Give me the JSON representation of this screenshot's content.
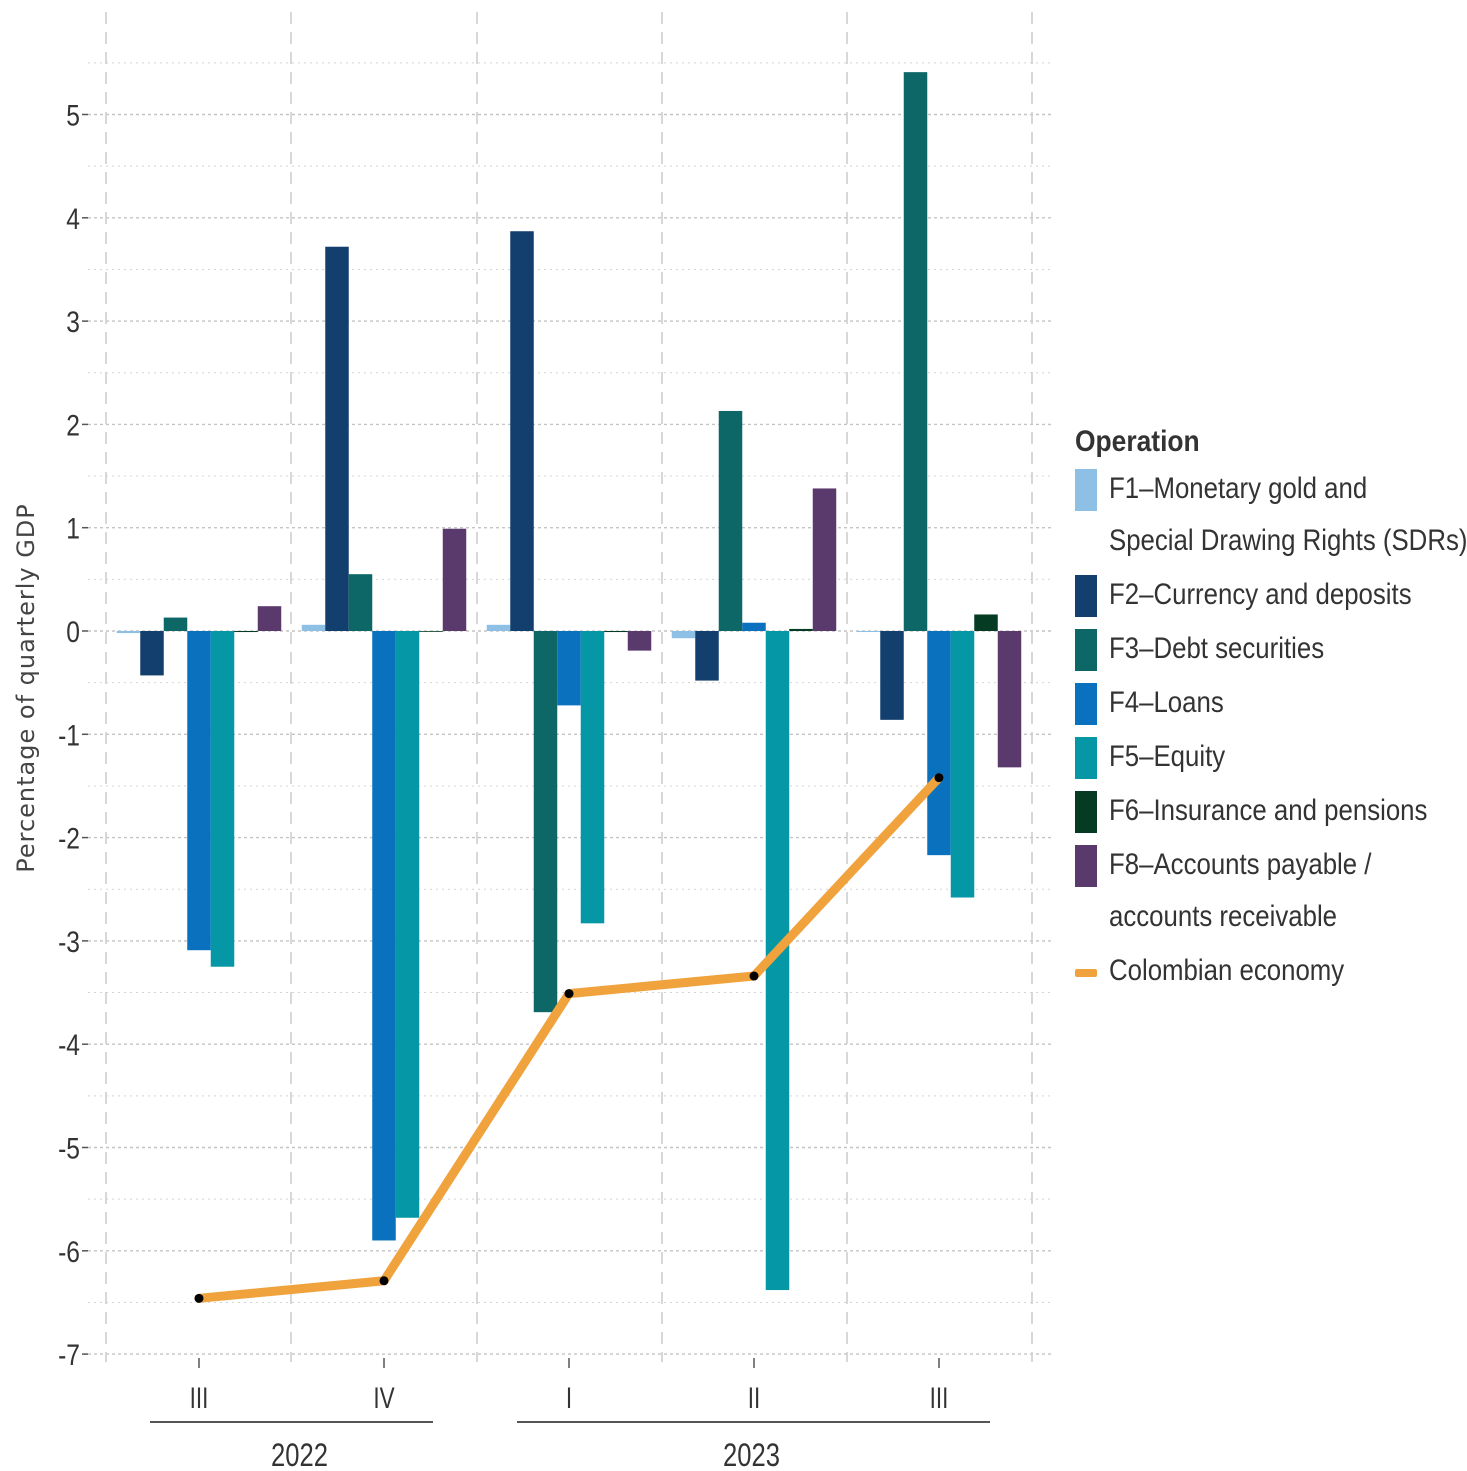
{
  "chart_data": {
    "type": "bar",
    "ylabel": "Percentage of quarterly GDP",
    "ylim": [
      -7,
      5.5
    ],
    "yticks": [
      -7,
      -6,
      -5,
      -4,
      -3,
      -2,
      -1,
      0,
      1,
      2,
      3,
      4,
      5
    ],
    "ytick_labels": [
      "-7",
      "-6",
      "-5",
      "-4",
      "-3",
      "-2",
      "-1",
      "0",
      "1",
      "2",
      "3",
      "4",
      "5"
    ],
    "categories": [
      "III",
      "IV",
      "I",
      "II",
      "III"
    ],
    "groups": [
      {
        "label": "2022",
        "categories": [
          0,
          1
        ]
      },
      {
        "label": "2023",
        "categories": [
          2,
          3,
          4
        ]
      }
    ],
    "grid": true,
    "legend_title": "Operation",
    "legend_position": "right",
    "series": [
      {
        "name": "F1–Monetary gold and Special Drawing Rights (SDRs)",
        "color": "#8ec0e6",
        "values": [
          -0.02,
          0.06,
          0.06,
          -0.07,
          -0.01
        ]
      },
      {
        "name": "F2–Currency and deposits",
        "color": "#123f6e",
        "values": [
          -0.43,
          3.72,
          3.87,
          -0.48,
          -0.86
        ]
      },
      {
        "name": "F3–Debt securities",
        "color": "#0d6766",
        "values": [
          0.13,
          0.55,
          -3.69,
          2.13,
          5.41
        ]
      },
      {
        "name": "F4–Loans",
        "color": "#0971bd",
        "values": [
          -3.09,
          -5.9,
          -0.72,
          0.08,
          -2.17
        ]
      },
      {
        "name": "F5–Equity",
        "color": "#0597a6",
        "values": [
          -3.25,
          -5.68,
          -2.83,
          -6.38,
          -2.58
        ]
      },
      {
        "name": "F6–Insurance and pensions",
        "color": "#053b22",
        "values": [
          -0.01,
          0.0,
          -0.01,
          0.02,
          0.16
        ]
      },
      {
        "name": "F8–Accounts payable / accounts receivable",
        "color": "#5a3a6c",
        "values": [
          0.24,
          0.99,
          -0.19,
          1.38,
          -1.32
        ]
      }
    ],
    "line_series": {
      "name": "Colombian economy",
      "color": "#f0a23c",
      "values": [
        -6.46,
        -6.29,
        -3.51,
        -3.34,
        -1.42
      ]
    }
  },
  "legend": {
    "title": "Operation",
    "items": [
      {
        "lines": [
          "F1–Monetary gold and",
          "Special Drawing Rights (SDRs)"
        ],
        "color": "#8ec0e6",
        "kind": "bar"
      },
      {
        "lines": [
          "F2–Currency and deposits"
        ],
        "color": "#123f6e",
        "kind": "bar"
      },
      {
        "lines": [
          "F3–Debt securities"
        ],
        "color": "#0d6766",
        "kind": "bar"
      },
      {
        "lines": [
          "F4–Loans"
        ],
        "color": "#0971bd",
        "kind": "bar"
      },
      {
        "lines": [
          "F5–Equity"
        ],
        "color": "#0597a6",
        "kind": "bar"
      },
      {
        "lines": [
          "F6–Insurance and pensions"
        ],
        "color": "#053b22",
        "kind": "bar"
      },
      {
        "lines": [
          "F8–Accounts payable /",
          "accounts receivable"
        ],
        "color": "#5a3a6c",
        "kind": "bar"
      },
      {
        "lines": [
          "Colombian economy"
        ],
        "color": "#f0a23c",
        "kind": "line"
      }
    ]
  }
}
